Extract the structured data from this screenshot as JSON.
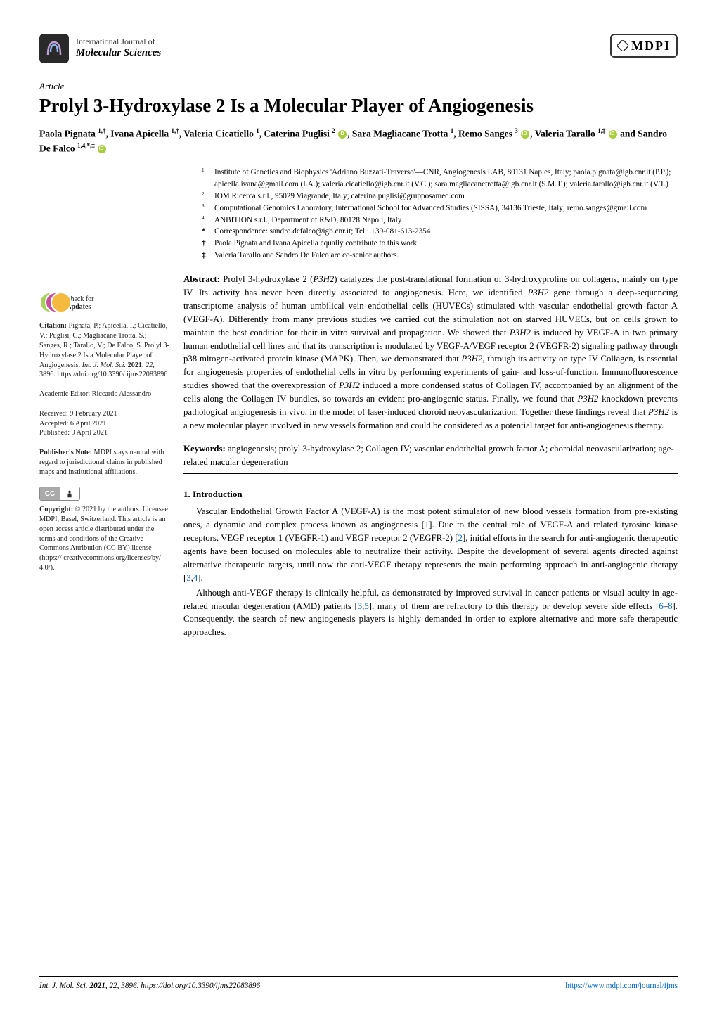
{
  "journal": {
    "top_line": "International Journal of",
    "bottom_line": "Molecular Sciences",
    "publisher_logo_text": "MDPI"
  },
  "article": {
    "type": "Article",
    "title": "Prolyl 3-Hydroxylase 2 Is a Molecular Player of Angiogenesis",
    "authors_html": "Paola Pignata <span class='sup'>1,†</span>, Ivana Apicella <span class='sup'>1,†</span>, Valeria Cicatiello <span class='sup'>1</span>, Caterina Puglisi <span class='sup'>2</span> <span class='orcid'></span>, Sara Magliacane Trotta <span class='sup'>1</span>, Remo Sanges <span class='sup'>3</span> <span class='orcid'></span>, Valeria Tarallo <span class='sup'>1,‡</span> <span class='orcid'></span> and Sandro De Falco <span class='sup'>1,4,*,‡</span> <span class='orcid'></span>"
  },
  "affiliations": [
    {
      "num": "1",
      "text": "Institute of Genetics and Biophysics 'Adriano Buzzati-Traverso'—CNR, Angiogenesis LAB, 80131 Naples, Italy; paola.pignata@igb.cnr.it (P.P.); apicella.ivana@gmail.com (I.A.); valeria.cicatiello@igb.cnr.it (V.C.); sara.magliacanetrotta@igb.cnr.it (S.M.T.); valeria.tarallo@igb.cnr.it (V.T.)"
    },
    {
      "num": "2",
      "text": "IOM Ricerca s.r.l., 95029 Viagrande, Italy; caterina.puglisi@grupposamed.com"
    },
    {
      "num": "3",
      "text": "Computational Genomics Laboratory, International School for Advanced Studies (SISSA), 34136 Trieste, Italy; remo.sanges@gmail.com"
    },
    {
      "num": "4",
      "text": "ANBITION s.r.l., Department of R&D, 80128 Napoli, Italy"
    }
  ],
  "notes": [
    {
      "sym": "*",
      "text": "Correspondence: sandro.defalco@igb.cnr.it; Tel.: +39-081-613-2354"
    },
    {
      "sym": "†",
      "text": "Paola Pignata and Ivana Apicella equally contribute to this work."
    },
    {
      "sym": "‡",
      "text": "Valeria Tarallo and Sandro De Falco are co-senior authors."
    }
  ],
  "abstract": "Prolyl 3-hydroxylase 2 (<i>P3H2</i>) catalyzes the post-translational formation of 3-hydroxyproline on collagens, mainly on type IV. Its activity has never been directly associated to angiogenesis. Here, we identified <i>P3H2</i> gene through a deep-sequencing transcriptome analysis of human umbilical vein endothelial cells (HUVECs) stimulated with vascular endothelial growth factor A (VEGF-A). Differently from many previous studies we carried out the stimulation not on starved HUVECs, but on cells grown to maintain the best condition for their in vitro survival and propagation. We showed that <i>P3H2</i> is induced by VEGF-A in two primary human endothelial cell lines and that its transcription is modulated by VEGF-A/VEGF receptor 2 (VEGFR-2) signaling pathway through p38 mitogen-activated protein kinase (MAPK). Then, we demonstrated that <i>P3H2</i>, through its activity on type IV Collagen, is essential for angiogenesis properties of endothelial cells in vitro by performing experiments of gain- and loss-of-function. Immunofluorescence studies showed that the overexpression of <i>P3H2</i> induced a more condensed status of Collagen IV, accompanied by an alignment of the cells along the Collagen IV bundles, so towards an evident pro-angiogenic status. Finally, we found that <i>P3H2</i> knockdown prevents pathological angiogenesis in vivo, in the model of laser-induced choroid neovascularization. Together these findings reveal that <i>P3H2</i> is a new molecular player involved in new vessels formation and could be considered as a potential target for anti-angiogenesis therapy.",
  "keywords": "angiogenesis; prolyl 3-hydroxylase 2; Collagen IV; vascular endothelial growth factor A; choroidal neovascularization; age-related macular degeneration",
  "intro": {
    "heading": "1. Introduction",
    "p1": "Vascular Endothelial Growth Factor A (VEGF-A) is the most potent stimulator of new blood vessels formation from pre-existing ones, a dynamic and complex process known as angiogenesis [<span class='ref'>1</span>]. Due to the central role of VEGF-A and related tyrosine kinase receptors, VEGF receptor 1 (VEGFR-1) and VEGF receptor 2 (VEGFR-2) [<span class='ref'>2</span>], initial efforts in the search for anti-angiogenic therapeutic agents have been focused on molecules able to neutralize their activity. Despite the development of several agents directed against alternative therapeutic targets, until now the anti-VEGF therapy represents the main performing approach in anti-angiogenic therapy [<span class='ref'>3</span>,<span class='ref'>4</span>].",
    "p2": "Although anti-VEGF therapy is clinically helpful, as demonstrated by improved survival in cancer patients or visual acuity in age-related macular degeneration (AMD) patients [<span class='ref'>3</span>,<span class='ref'>5</span>], many of them are refractory to this therapy or develop severe side effects [<span class='ref'>6</span>–<span class='ref'>8</span>]. Consequently, the search of new angiogenesis players is highly demanded in order to explore alternative and more safe therapeutic approaches."
  },
  "sidebar": {
    "check_label": "check for",
    "check_bold": "updates",
    "citation": "<b>Citation:</b> Pignata, P.; Apicella, I.; Cicatiello, V.; Puglisi, C.; Magliacane Trotta, S.; Sanges, R.; Tarallo, V.; De Falco, S. Prolyl 3-Hydroxylase 2 Is a Molecular Player of Angiogenesis. <i>Int. J. Mol. Sci.</i> <b>2021</b>, <i>22</i>, 3896. https://doi.org/10.3390/ ijms22083896",
    "editor": "Academic Editor: Riccardo Alessandro",
    "received": "Received: 9 February 2021",
    "accepted": "Accepted: 6 April 2021",
    "published": "Published: 9 April 2021",
    "pubnote": "<b>Publisher's Note:</b> MDPI stays neutral with regard to jurisdictional claims in published maps and institutional affiliations.",
    "copyright": "<b>Copyright:</b> © 2021 by the authors. Licensee MDPI, Basel, Switzerland. This article is an open access article distributed under the terms and conditions of the Creative Commons Attribution (CC BY) license (https:// creativecommons.org/licenses/by/ 4.0/)."
  },
  "footer": {
    "left": "Int. J. Mol. Sci. <b>2021</b>, 22, 3896. https://doi.org/10.3390/ijms22083896",
    "right": "https://www.mdpi.com/journal/ijms"
  },
  "colors": {
    "link": "#0066cc",
    "orcid": "#a6ce39",
    "logo_bg": "#2a2a2a"
  }
}
